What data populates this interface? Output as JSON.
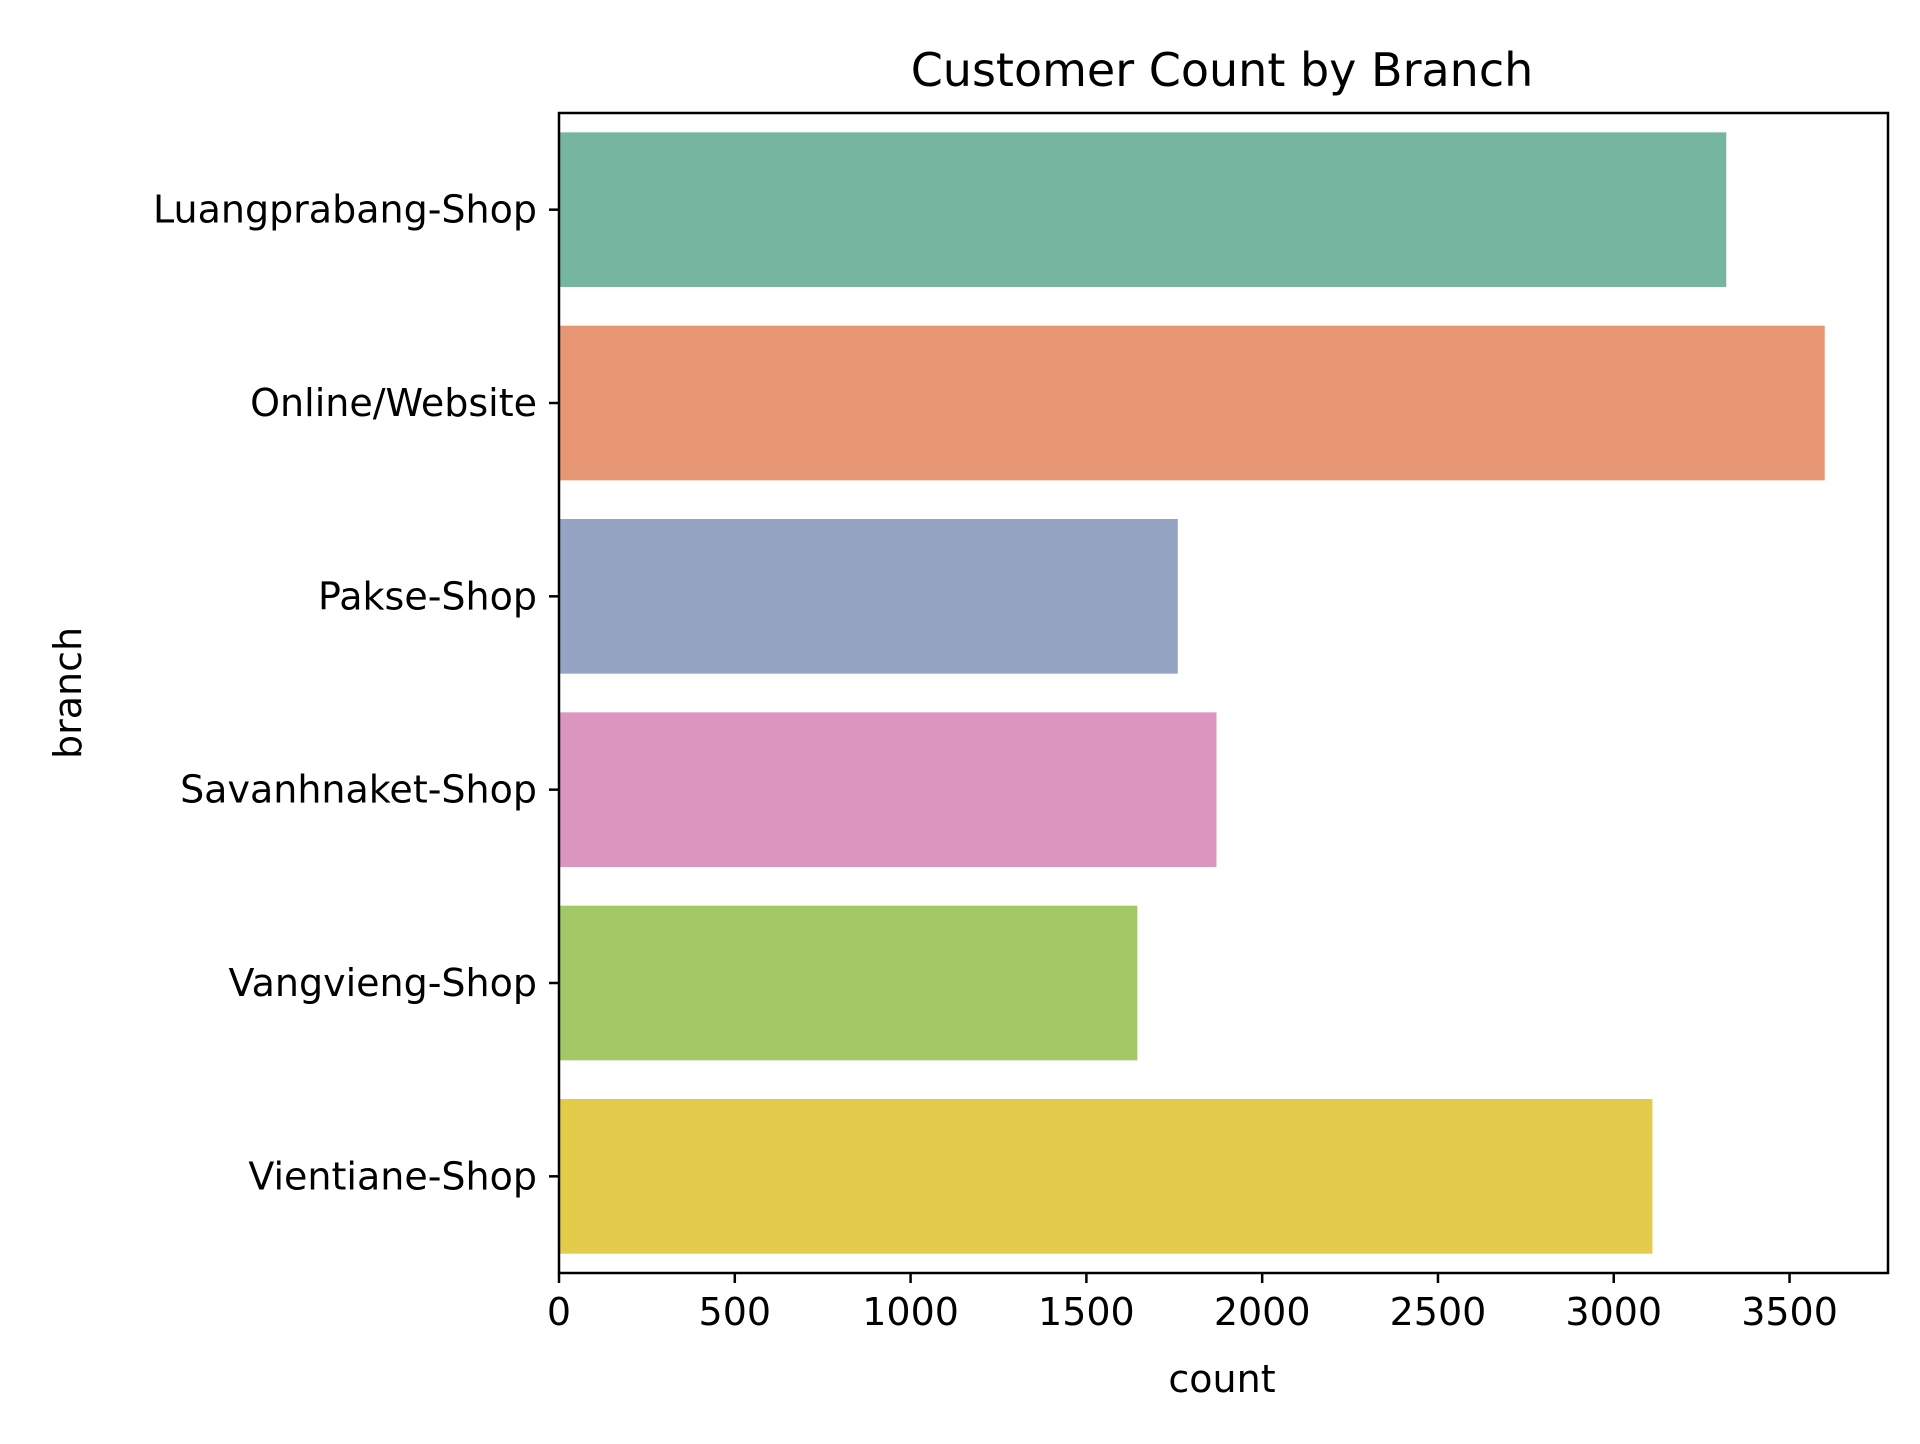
{
  "chart_data": {
    "type": "bar",
    "orientation": "horizontal",
    "title": "Customer Count by Branch",
    "xlabel": "count",
    "ylabel": "branch",
    "categories": [
      "Luangprabang-Shop",
      "Online/Website",
      "Pakse-Shop",
      "Savanhnaket-Shop",
      "Vangvieng-Shop",
      "Vientiane-Shop"
    ],
    "values": [
      3320,
      3600,
      1760,
      1870,
      1645,
      3110
    ],
    "colors": [
      "#76b6a1",
      "#e89774",
      "#94a4c2",
      "#dc95bf",
      "#a3c866",
      "#e3cb4b"
    ],
    "xlim": [
      0,
      3780
    ],
    "xticks": [
      0,
      500,
      1000,
      1500,
      2000,
      2500,
      3000,
      3500
    ],
    "grid": false,
    "legend": "none"
  }
}
